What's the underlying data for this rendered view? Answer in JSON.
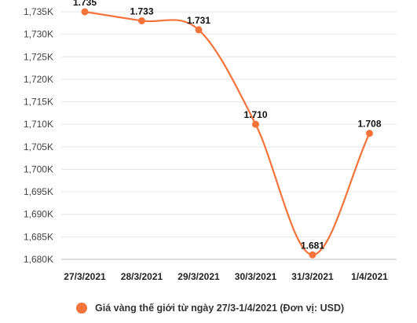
{
  "chart_data": {
    "type": "line",
    "categories": [
      "27/3/2021",
      "28/3/2021",
      "29/3/2021",
      "30/3/2021",
      "31/3/2021",
      "1/4/2021"
    ],
    "series": [
      {
        "name": "Giá vàng thế giới từ ngày 27/3-1/4/2021 (Đơn vị: USD)",
        "values": [
          1735,
          1733,
          1731,
          1710,
          1681,
          1708
        ],
        "labels": [
          "1.735",
          "1.733",
          "1.731",
          "1.710",
          "1.681",
          "1.708"
        ],
        "color": "#F4733B"
      }
    ],
    "y_ticks": [
      "1,735K",
      "1,730K",
      "1,725K",
      "1,720K",
      "1,715K",
      "1,710K",
      "1,705K",
      "1,700K",
      "1,695K",
      "1,690K",
      "1,685K",
      "1,680K"
    ],
    "y_tick_values": [
      1735,
      1730,
      1725,
      1720,
      1715,
      1710,
      1705,
      1700,
      1695,
      1690,
      1685,
      1680
    ],
    "ylim": [
      1680,
      1735
    ],
    "grid": "horizontal",
    "legend_position": "bottom"
  }
}
